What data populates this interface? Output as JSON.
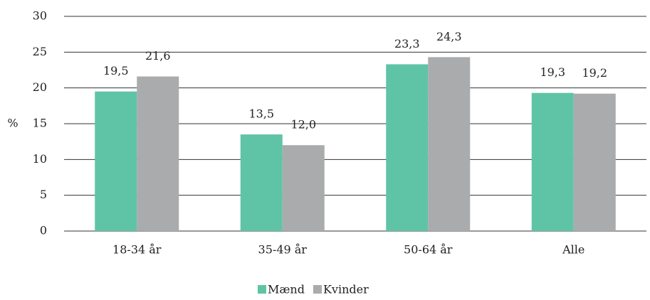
{
  "chart_data": {
    "type": "bar",
    "ylabel": "%",
    "categories": [
      "18-34 år",
      "35-49 år",
      "50-64 år",
      "Alle"
    ],
    "series": [
      {
        "name": "Mænd",
        "color": "#5fc4a5",
        "values": [
          19.5,
          13.5,
          23.3,
          19.3
        ],
        "value_labels": [
          "19,5",
          "13,5",
          "23,3",
          "19,3"
        ]
      },
      {
        "name": "Kvinder",
        "color": "#a9abad",
        "values": [
          21.6,
          12.0,
          24.3,
          19.2
        ],
        "value_labels": [
          "21,6",
          "12,0",
          "24,3",
          "19,2"
        ]
      }
    ],
    "ylim": [
      0,
      30
    ],
    "yticks": [
      0,
      5,
      10,
      15,
      20,
      25,
      30
    ],
    "grid": true,
    "legend": "bottom"
  }
}
